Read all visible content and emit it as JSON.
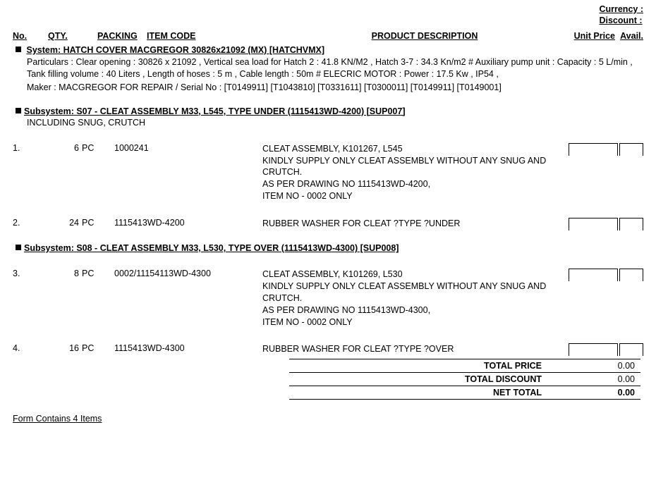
{
  "top": {
    "currency_label": "Currency :",
    "discount_label": "Discount :"
  },
  "headers": {
    "no": "No.",
    "qty": "QTY.",
    "packing": "PACKING",
    "item_code": "ITEM CODE",
    "product_desc": "PRODUCT DESCRIPTION",
    "unit_price": "Unit Price",
    "avail": "Avail."
  },
  "system": {
    "prefix": "System:",
    "title": "HATCH COVER MACGREGOR 30826x21092 (MX) [HATCHVMX]",
    "particulars": "Particulars : Clear opening : 30826 x 21092 , Vertical sea load for Hatch 2 : 41.8 KN/M2 , Hatch 3-7 : 34.3 Kn/m2 # Auxiliary pump unit : Capacity : 5 L/min , Tank filling volume : 40 Liters , Length of hoses : 5 m , Cable length : 50m # ELECRIC MOTOR : Power : 17.5 Kw , IP54  ,",
    "maker": "Maker : MACGREGOR FOR REPAIR / Serial No :  [T0149911]  [T1043810]  [T0331611]  [T0300011]  [T0149911]  [T0149001]"
  },
  "subsystems": [
    {
      "prefix": "Subsystem:",
      "title": "S07 - CLEAT ASSEMBLY M33, L545, TYPE UNDER (1115413WD-4200) [SUP007]",
      "note": "INCLUDING SNUG, CRUTCH",
      "items": [
        {
          "num": "1.",
          "qty": "6",
          "pack": "PC",
          "code": "1000241",
          "desc": "CLEAT ASSEMBLY, K101267, L545\nKINDLY SUPPLY ONLY CLEAT ASSEMBLY WITHOUT ANY SNUG AND CRUTCH.\nAS PER DRAWING NO 1115413WD-4200,\nITEM NO - 0002 ONLY"
        },
        {
          "num": "2.",
          "qty": "24",
          "pack": "PC",
          "code": "1115413WD-4200",
          "desc": "RUBBER WASHER FOR CLEAT ?TYPE ?UNDER"
        }
      ]
    },
    {
      "prefix": "Subsystem:",
      "title": "S08 - CLEAT ASSEMBLY M33, L530, TYPE OVER (1115413WD-4300) [SUP008]",
      "note": "",
      "items": [
        {
          "num": "3.",
          "qty": "8",
          "pack": "PC",
          "code": "0002/11154113WD-4300",
          "desc": "CLEAT ASSEMBLY, K101269, L530\nKINDLY SUPPLY ONLY CLEAT ASSEMBLY WITHOUT ANY SNUG AND CRUTCH.\n AS PER DRAWING NO 1115413WD-4300,\n ITEM NO - 0002 ONLY"
        },
        {
          "num": "4.",
          "qty": "16",
          "pack": "PC",
          "code": "1115413WD-4300",
          "desc": "RUBBER WASHER FOR CLEAT ?TYPE ?OVER"
        }
      ]
    }
  ],
  "totals": {
    "price_label": "TOTAL PRICE",
    "price_val": "0.00",
    "discount_label": "TOTAL DISCOUNT",
    "discount_val": "0.00",
    "net_label": "NET TOTAL",
    "net_val": "0.00"
  },
  "footer": "Form Contains 4 Items"
}
